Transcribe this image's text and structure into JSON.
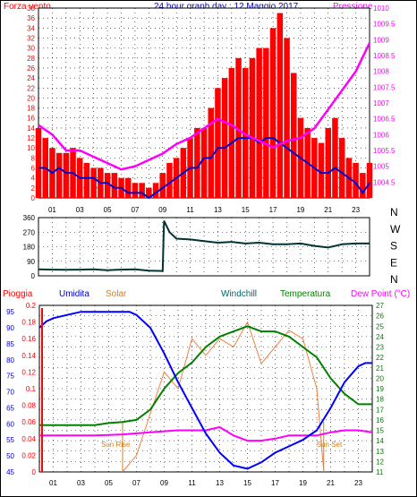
{
  "window": {
    "title": "24 hour graph day : 12 Maggio 2017",
    "legend_wind": "Forza vento",
    "legend_pressure": "Pressione"
  },
  "bottom_legend": {
    "rain": "Pioggia",
    "humidity": "Umidita",
    "solar": "Solar",
    "windchill": "Windchill",
    "temperature": "Temperatura",
    "dewpoint": "Dew Point (°C)",
    "sunrise": "Sun Rise",
    "sunset": "Sun Set"
  },
  "colors": {
    "wind": "#ff0000",
    "pressure": "#ff00ff",
    "wind_avg": "#0000cc",
    "direction": "#003333",
    "humidity": "#0000ff",
    "solar": "#f08040",
    "temperature": "#008000",
    "dewpoint": "#ff00ff",
    "rain": "#ff0000",
    "grid": "#000000"
  },
  "chart_data": [
    {
      "type": "line",
      "title": "24 hour graph day : 12 Maggio 2017",
      "x_ticks": [
        "01",
        "03",
        "05",
        "07",
        "09",
        "11",
        "13",
        "15",
        "17",
        "19",
        "21",
        "23"
      ],
      "x_range": [
        0,
        24
      ],
      "left_axis": {
        "label": "Forza vento",
        "ylim": [
          0,
          38
        ],
        "ticks": [
          "0",
          "2",
          "4",
          "6",
          "8",
          "10",
          "12",
          "14",
          "16",
          "18",
          "20",
          "22",
          "24",
          "26",
          "28",
          "30",
          "32",
          "34",
          "36",
          "38"
        ]
      },
      "right_axis": {
        "label": "Pressione",
        "ylim": [
          1004,
          1010
        ],
        "ticks": [
          "1004.5",
          "1005",
          "1005.5",
          "1006",
          "1006.5",
          "1007",
          "1007.5",
          "1008",
          "1008.5",
          "1009",
          "1009.5",
          "1010"
        ]
      },
      "series": [
        {
          "name": "Forza vento",
          "axis": "left",
          "style": "bars",
          "x": [
            0,
            0.5,
            1,
            1.5,
            2,
            2.5,
            3,
            3.5,
            4,
            4.5,
            5,
            5.5,
            6,
            6.5,
            7,
            7.5,
            8,
            8.5,
            9,
            9.5,
            10,
            10.5,
            11,
            11.5,
            12,
            12.5,
            13,
            13.5,
            14,
            14.5,
            15,
            15.5,
            16,
            16.5,
            17,
            17.5,
            18,
            18.5,
            19,
            19.5,
            20,
            20.5,
            21,
            21.5,
            22,
            22.5,
            23,
            23.5,
            24
          ],
          "y": [
            14,
            12,
            10,
            9,
            9,
            10,
            8,
            7,
            6,
            6,
            5,
            5,
            4,
            4,
            3,
            3,
            2,
            3,
            5,
            7,
            8,
            10,
            12,
            14,
            14,
            18,
            22,
            24,
            26,
            28,
            26,
            28,
            30,
            30,
            34,
            37,
            32,
            25,
            16,
            14,
            12,
            11,
            14,
            16,
            12,
            8,
            7,
            5,
            7
          ]
        },
        {
          "name": "wind average",
          "axis": "left",
          "style": "line",
          "x": [
            0,
            0.5,
            1,
            1.5,
            2,
            2.5,
            3,
            3.5,
            4,
            4.5,
            5,
            5.5,
            6,
            6.5,
            7,
            7.5,
            8,
            8.5,
            9,
            9.5,
            10,
            10.5,
            11,
            11.5,
            12,
            12.5,
            13,
            13.5,
            14,
            14.5,
            15,
            15.5,
            16,
            16.5,
            17,
            17.5,
            18,
            18.5,
            19,
            19.5,
            20,
            20.5,
            21,
            21.5,
            22,
            22.5,
            23,
            23.5,
            24
          ],
          "y": [
            6,
            6,
            5,
            6,
            5,
            5,
            4,
            4,
            4,
            3,
            3,
            2,
            2,
            1,
            1,
            1,
            0,
            1,
            2,
            3,
            4,
            5,
            6,
            6,
            8,
            8,
            10,
            10,
            11,
            12,
            12,
            12,
            11,
            12,
            12,
            11,
            10,
            9,
            8,
            7,
            6,
            5,
            5,
            6,
            5,
            4,
            3,
            1,
            3
          ]
        },
        {
          "name": "Pressione",
          "axis": "right",
          "x": [
            0,
            1,
            2,
            3,
            4,
            5,
            6,
            7,
            8,
            9,
            10,
            11,
            12,
            13,
            14,
            15,
            16,
            17,
            18,
            19,
            20,
            21,
            22,
            23,
            24
          ],
          "y": [
            1006.3,
            1006.0,
            1005.5,
            1005.5,
            1005.3,
            1005.1,
            1004.9,
            1005.0,
            1005.2,
            1005.4,
            1005.7,
            1005.9,
            1006.2,
            1006.5,
            1006.3,
            1006.0,
            1005.8,
            1005.6,
            1005.8,
            1005.9,
            1006.2,
            1006.8,
            1007.4,
            1008.0,
            1008.9
          ]
        }
      ]
    },
    {
      "type": "line",
      "title": "",
      "x_range": [
        0,
        24
      ],
      "left_axis": {
        "ylim": [
          0,
          360
        ],
        "ticks": [
          "0",
          "90",
          "180",
          "270",
          "360"
        ]
      },
      "right_labels": [
        "N",
        "W",
        "S",
        "E",
        "N"
      ],
      "series": [
        {
          "name": "wind direction",
          "x": [
            0,
            1,
            2,
            3,
            4,
            5,
            6,
            7,
            8,
            9,
            9.1,
            9.5,
            10,
            11,
            12,
            13,
            14,
            15,
            16,
            17,
            18,
            19,
            20,
            21,
            22,
            23,
            24
          ],
          "y": [
            40,
            38,
            37,
            38,
            40,
            35,
            38,
            40,
            32,
            30,
            340,
            270,
            230,
            225,
            215,
            205,
            210,
            200,
            205,
            195,
            195,
            200,
            185,
            175,
            195,
            200,
            200
          ]
        }
      ]
    },
    {
      "type": "line",
      "title": "",
      "x_ticks": [
        "01",
        "03",
        "05",
        "07",
        "09",
        "11",
        "13",
        "15",
        "17",
        "19",
        "21",
        "23"
      ],
      "x_range": [
        0,
        24
      ],
      "sunrise_hour": 6.0,
      "sunset_hour": 20.5,
      "axes": {
        "rain": {
          "label": "Pioggia",
          "ylim": [
            0,
            0.2
          ],
          "ticks": [
            "0",
            "0.02",
            "0.04",
            "0.06",
            "0.08",
            "0.1",
            "0.12",
            "0.14",
            "0.16",
            "0.18",
            "0.2"
          ]
        },
        "humidity": {
          "label": "Umidita",
          "ylim": [
            45,
            97
          ],
          "ticks": [
            "45",
            "50",
            "55",
            "60",
            "65",
            "70",
            "75",
            "80",
            "85",
            "90",
            "95"
          ]
        },
        "temperature": {
          "label": "Temperatura",
          "ylim": [
            11,
            27
          ],
          "ticks": [
            "11",
            "12",
            "13",
            "14",
            "15",
            "16",
            "17",
            "18",
            "19",
            "20",
            "21",
            "22",
            "23",
            "24",
            "25",
            "26",
            "27"
          ]
        }
      },
      "series": [
        {
          "name": "Umidita",
          "axis": "humidity",
          "x": [
            0,
            0.5,
            1,
            2,
            3,
            4,
            5,
            6,
            6.5,
            7,
            8,
            9,
            10,
            11,
            12,
            13,
            14,
            15,
            16,
            17,
            18,
            19,
            20,
            21,
            22,
            23,
            23.5,
            24
          ],
          "y": [
            90,
            92,
            93,
            94,
            95,
            95,
            95,
            95,
            95,
            94,
            90,
            82,
            73,
            65,
            57,
            51,
            47,
            46,
            48,
            51,
            53,
            55,
            58,
            65,
            73,
            78,
            79,
            79
          ]
        },
        {
          "name": "Solar",
          "axis": "rain",
          "x": [
            6,
            7,
            8,
            9,
            10,
            11,
            12,
            13,
            14,
            15,
            16,
            17,
            18,
            19,
            20,
            20.5
          ],
          "y": [
            0,
            0.02,
            0.07,
            0.12,
            0.1,
            0.16,
            0.14,
            0.16,
            0.15,
            0.18,
            0.13,
            0.15,
            0.17,
            0.16,
            0.1,
            0
          ]
        },
        {
          "name": "Temperatura",
          "axis": "temperature",
          "x": [
            0,
            2,
            4,
            5,
            6,
            7,
            8,
            9,
            10,
            11,
            12,
            13,
            14,
            15,
            16,
            17,
            18,
            19,
            20,
            21,
            22,
            23,
            24
          ],
          "y": [
            15.5,
            15.5,
            15.5,
            15.7,
            15.8,
            16,
            17,
            19,
            20.5,
            21.5,
            23,
            24,
            24.5,
            25,
            24.5,
            24.5,
            24,
            23,
            22,
            20,
            18.5,
            17.5,
            17.5
          ]
        },
        {
          "name": "Dew Point (°C)",
          "axis": "temperature",
          "x": [
            0,
            2,
            4,
            6,
            8,
            10,
            12,
            13,
            14,
            15,
            16,
            17,
            18,
            19,
            20,
            21,
            22,
            23,
            24
          ],
          "y": [
            14.5,
            14.5,
            14.5,
            14.6,
            14.8,
            15,
            15,
            15.3,
            14.5,
            14,
            14,
            14.2,
            14.5,
            14.5,
            14.5,
            14.8,
            15,
            15,
            14.8
          ]
        }
      ]
    }
  ]
}
